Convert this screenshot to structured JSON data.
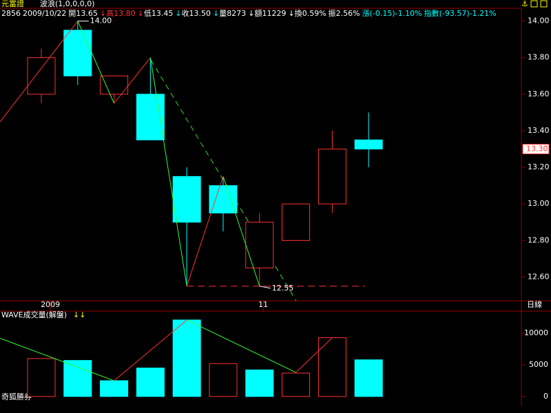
{
  "chart_data": {
    "type": "candlestick",
    "title": "元富證",
    "indicator": "波浪(1,0,0,0,0)",
    "header": [
      {
        "text": "2856",
        "color": "#ffffff"
      },
      {
        "text": "2009/10/22",
        "color": "#ffffff"
      },
      {
        "text": "開13.65",
        "color": "#ffffff"
      },
      {
        "text": "↓",
        "color": "#ff3232"
      },
      {
        "text": "高13.80",
        "color": "#ff3232"
      },
      {
        "text": "↓",
        "color": "#ff3232"
      },
      {
        "text": "低13.45",
        "color": "#ffffff"
      },
      {
        "text": "↓",
        "color": "#00ffff"
      },
      {
        "text": "收13.50",
        "color": "#ffffff"
      },
      {
        "text": "↓",
        "color": "#00ffff"
      },
      {
        "text": "量8273",
        "color": "#ffffff"
      },
      {
        "text": "↓",
        "color": "#ffffff"
      },
      {
        "text": "額11229",
        "color": "#ffffff"
      },
      {
        "text": "↓",
        "color": "#ffffff"
      },
      {
        "text": "換0.59%",
        "color": "#ffffff"
      },
      {
        "text": "振2.56%",
        "color": "#ffffff"
      },
      {
        "text": "漲(-0.15)-1.10%",
        "color": "#00ffff"
      },
      {
        "text": "指數(-93.57)-1.21%",
        "color": "#00ffff"
      }
    ],
    "x_labels": [
      {
        "index": 0.25,
        "label": "2009"
      },
      {
        "index": 6.1,
        "label": "11"
      }
    ],
    "period": "日線",
    "open": [
      13.6,
      13.95,
      13.6,
      13.6,
      13.15,
      13.1,
      12.65,
      12.8,
      13.0,
      13.35
    ],
    "high": [
      13.85,
      14.0,
      13.7,
      13.8,
      13.2,
      13.15,
      12.95,
      13.0,
      13.4,
      13.5
    ],
    "low": [
      13.55,
      13.65,
      13.55,
      13.35,
      12.55,
      12.85,
      12.55,
      12.8,
      12.95,
      13.2
    ],
    "close": [
      13.8,
      13.7,
      13.7,
      13.35,
      12.9,
      12.95,
      12.9,
      13.0,
      13.3,
      13.3
    ],
    "up_color": "#ff3232",
    "down_color": "#00ffff",
    "ylim": [
      12.47,
      14.07
    ],
    "yticks": [
      {
        "value": 12.6,
        "label": "12.60"
      },
      {
        "value": 12.8,
        "label": "12.80"
      },
      {
        "value": 13.0,
        "label": "13.00"
      },
      {
        "value": 13.2,
        "label": "13.20"
      },
      {
        "value": 13.4,
        "label": "13.40"
      },
      {
        "value": 13.6,
        "label": "13.60"
      },
      {
        "value": 13.8,
        "label": "13.80"
      },
      {
        "value": 14.0,
        "label": "14.00"
      }
    ],
    "last_price": {
      "value": 13.3,
      "label": "13.30"
    },
    "wave": {
      "x": [
        -1.13,
        1,
        2,
        3,
        4,
        5,
        6
      ],
      "y": [
        13.45,
        14.0,
        13.55,
        13.8,
        12.55,
        13.15,
        12.55
      ]
    },
    "wave_labels": [
      {
        "value": 14.0,
        "label": "14.00"
      },
      {
        "value": 12.55,
        "label": "12.55"
      }
    ],
    "volume": {
      "title": "WAVE成交量(解盤)",
      "arrows": "↓↓",
      "values": [
        6000,
        5700,
        2500,
        4500,
        12100,
        5200,
        4200,
        3700,
        9300,
        5800
      ],
      "colors": [
        "#ff3232",
        "#00ffff",
        "#00ffff",
        "#00ffff",
        "#00ffff",
        "#ff3232",
        "#00ffff",
        "#ff3232",
        "#ff3232",
        "#00ffff"
      ],
      "ylim": [
        0,
        13500
      ],
      "yticks": [
        0,
        5000,
        10000
      ],
      "wave": {
        "x": [
          -1.13,
          2,
          4,
          7,
          8
        ],
        "y": [
          9200,
          2500,
          12100,
          3800,
          9300
        ]
      }
    },
    "footer": "奇狐勝券"
  }
}
